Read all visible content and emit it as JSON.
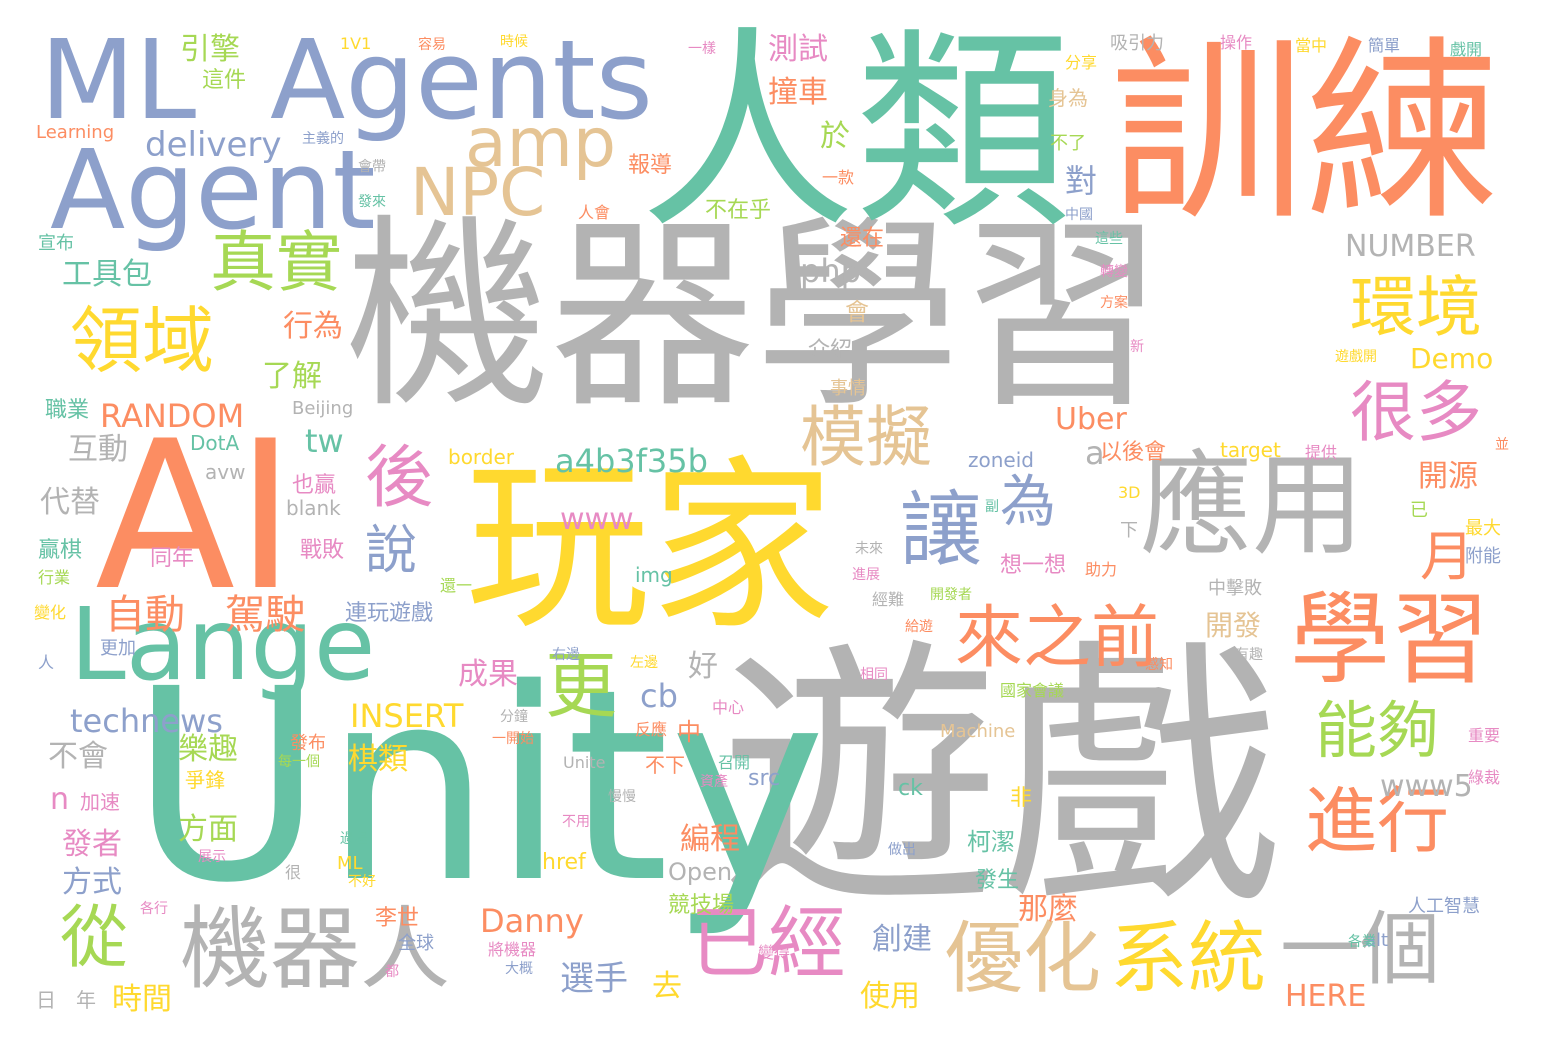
{
  "palette": {
    "gray": "#b3b3b3",
    "green": "#66c2a5",
    "orange": "#fc8d62",
    "blue": "#8da0cb",
    "pink": "#e78ac3",
    "lime": "#a6d854",
    "yellow": "#ffd92f",
    "tan": "#e5c494"
  },
  "words": [
    {
      "text": "機器學習",
      "color": "gray"
    },
    {
      "text": "遊戲",
      "color": "gray"
    },
    {
      "text": "Unity",
      "color": "green"
    },
    {
      "text": "玩家",
      "color": "yellow"
    },
    {
      "text": "人類",
      "color": "green"
    },
    {
      "text": "訓練",
      "color": "orange"
    },
    {
      "text": "AI",
      "color": "orange"
    },
    {
      "text": "ML",
      "color": "blue"
    },
    {
      "text": "Agents",
      "color": "blue"
    },
    {
      "text": "Agent",
      "color": "blue"
    },
    {
      "text": "Lange",
      "color": "green"
    },
    {
      "text": "應用",
      "color": "gray"
    },
    {
      "text": "學習",
      "color": "orange"
    },
    {
      "text": "機器人",
      "color": "gray"
    },
    {
      "text": "優化",
      "color": "tan"
    },
    {
      "text": "系統",
      "color": "yellow"
    },
    {
      "text": "已經",
      "color": "pink"
    },
    {
      "text": "一個",
      "color": "gray"
    },
    {
      "text": "讓",
      "color": "blue"
    },
    {
      "text": "更",
      "color": "lime"
    },
    {
      "text": "進行",
      "color": "orange"
    },
    {
      "text": "來之前",
      "color": "orange"
    },
    {
      "text": "領域",
      "color": "yellow"
    },
    {
      "text": "真實",
      "color": "lime"
    },
    {
      "text": "NPC",
      "color": "tan"
    },
    {
      "text": "amp",
      "color": "tan"
    },
    {
      "text": "模擬",
      "color": "tan"
    },
    {
      "text": "環境",
      "color": "yellow"
    },
    {
      "text": "很多",
      "color": "pink"
    },
    {
      "text": "能夠",
      "color": "lime"
    },
    {
      "text": "後",
      "color": "pink"
    },
    {
      "text": "說",
      "color": "blue"
    },
    {
      "text": "為",
      "color": "blue"
    },
    {
      "text": "月",
      "color": "orange"
    },
    {
      "text": "從",
      "color": "lime"
    },
    {
      "text": "自動",
      "color": "orange"
    },
    {
      "text": "駕駛",
      "color": "orange"
    },
    {
      "text": "delivery",
      "color": "blue"
    },
    {
      "text": "RANDOM",
      "color": "orange"
    },
    {
      "text": "a4b3f35b",
      "color": "green"
    },
    {
      "text": "www",
      "color": "pink"
    },
    {
      "text": "technews",
      "color": "blue"
    },
    {
      "text": "INSERT",
      "color": "yellow"
    },
    {
      "text": "NUMBER",
      "color": "gray"
    },
    {
      "text": "php",
      "color": "gray"
    },
    {
      "text": "Uber",
      "color": "orange"
    },
    {
      "text": "Demo",
      "color": "yellow"
    },
    {
      "text": "tw",
      "color": "green"
    },
    {
      "text": "cb",
      "color": "blue"
    },
    {
      "text": "www5",
      "color": "gray"
    },
    {
      "text": "Danny",
      "color": "orange"
    },
    {
      "text": "HERE",
      "color": "orange"
    },
    {
      "text": "Open",
      "color": "gray"
    },
    {
      "text": "href",
      "color": "yellow"
    },
    {
      "text": "src",
      "color": "blue"
    },
    {
      "text": "ck",
      "color": "green"
    },
    {
      "text": "img",
      "color": "green"
    },
    {
      "text": "border",
      "color": "yellow"
    },
    {
      "text": "target",
      "color": "yellow"
    },
    {
      "text": "zoneid",
      "color": "blue"
    },
    {
      "text": "blank",
      "color": "gray"
    },
    {
      "text": "avw",
      "color": "gray"
    },
    {
      "text": "DotA",
      "color": "green"
    },
    {
      "text": "Beijing",
      "color": "gray"
    },
    {
      "text": "Learning",
      "color": "orange"
    },
    {
      "text": "1V1",
      "color": "yellow"
    },
    {
      "text": "Machine",
      "color": "tan"
    },
    {
      "text": "Unite",
      "color": "gray"
    },
    {
      "text": "ML",
      "color": "yellow"
    },
    {
      "text": "3D",
      "color": "yellow"
    },
    {
      "text": "alt",
      "color": "blue"
    },
    {
      "text": "a",
      "color": "gray"
    },
    {
      "text": "n",
      "color": "pink"
    },
    {
      "text": "引擎",
      "color": "lime"
    },
    {
      "text": "這件",
      "color": "lime"
    },
    {
      "text": "工具包",
      "color": "green"
    },
    {
      "text": "行為",
      "color": "orange"
    },
    {
      "text": "了解",
      "color": "lime"
    },
    {
      "text": "職業",
      "color": "green"
    },
    {
      "text": "互動",
      "color": "gray"
    },
    {
      "text": "代替",
      "color": "gray"
    },
    {
      "text": "贏棋",
      "color": "green"
    },
    {
      "text": "行業",
      "color": "lime"
    },
    {
      "text": "變化",
      "color": "yellow"
    },
    {
      "text": "宣布",
      "color": "green"
    },
    {
      "text": "測試",
      "color": "pink"
    },
    {
      "text": "撞車",
      "color": "orange"
    },
    {
      "text": "於",
      "color": "lime"
    },
    {
      "text": "報導",
      "color": "orange"
    },
    {
      "text": "不在乎",
      "color": "lime"
    },
    {
      "text": "介紹",
      "color": "gray"
    },
    {
      "text": "事情",
      "color": "tan"
    },
    {
      "text": "成果",
      "color": "pink"
    },
    {
      "text": "好",
      "color": "gray"
    },
    {
      "text": "樂趣",
      "color": "lime"
    },
    {
      "text": "棋類",
      "color": "yellow"
    },
    {
      "text": "不會",
      "color": "gray"
    },
    {
      "text": "方面",
      "color": "lime"
    },
    {
      "text": "發者",
      "color": "pink"
    },
    {
      "text": "方式",
      "color": "blue"
    },
    {
      "text": "時間",
      "color": "yellow"
    },
    {
      "text": "選手",
      "color": "blue"
    },
    {
      "text": "去",
      "color": "yellow"
    },
    {
      "text": "使用",
      "color": "yellow"
    },
    {
      "text": "創建",
      "color": "blue"
    },
    {
      "text": "編程",
      "color": "orange"
    },
    {
      "text": "競技場",
      "color": "lime"
    },
    {
      "text": "那麼",
      "color": "orange"
    },
    {
      "text": "柯潔",
      "color": "green"
    },
    {
      "text": "發生",
      "color": "green"
    },
    {
      "text": "開發",
      "color": "tan"
    },
    {
      "text": "開源",
      "color": "orange"
    },
    {
      "text": "連玩遊戲",
      "color": "blue"
    },
    {
      "text": "對",
      "color": "blue"
    },
    {
      "text": "還在",
      "color": "orange"
    },
    {
      "text": "會",
      "color": "tan"
    },
    {
      "text": "以後會",
      "color": "orange"
    },
    {
      "text": "想一想",
      "color": "pink"
    },
    {
      "text": "中擊敗",
      "color": "gray"
    },
    {
      "text": "提供",
      "color": "pink"
    },
    {
      "text": "人工智慧",
      "color": "blue"
    },
    {
      "text": "最大",
      "color": "yellow"
    },
    {
      "text": "附能",
      "color": "blue"
    },
    {
      "text": "李世",
      "color": "orange"
    },
    {
      "text": "全球",
      "color": "blue"
    },
    {
      "text": "同年",
      "color": "pink"
    },
    {
      "text": "戰敗",
      "color": "pink"
    },
    {
      "text": "也贏",
      "color": "pink"
    },
    {
      "text": "日",
      "color": "gray"
    },
    {
      "text": "年",
      "color": "gray"
    },
    {
      "text": "人",
      "color": "blue"
    },
    {
      "text": "更加",
      "color": "blue"
    },
    {
      "text": "加速",
      "color": "pink"
    },
    {
      "text": "爭鋒",
      "color": "yellow"
    },
    {
      "text": "發布",
      "color": "orange"
    },
    {
      "text": "中",
      "color": "orange"
    },
    {
      "text": "不下",
      "color": "orange"
    },
    {
      "text": "不了",
      "color": "lime"
    },
    {
      "text": "身為",
      "color": "tan"
    },
    {
      "text": "分享",
      "color": "yellow"
    },
    {
      "text": "吸引力",
      "color": "gray"
    },
    {
      "text": "操作",
      "color": "pink"
    },
    {
      "text": "當中",
      "color": "yellow"
    },
    {
      "text": "簡單",
      "color": "blue"
    },
    {
      "text": "戲開",
      "color": "green"
    },
    {
      "text": "容易",
      "color": "orange"
    },
    {
      "text": "時候",
      "color": "yellow"
    },
    {
      "text": "一樣",
      "color": "pink"
    },
    {
      "text": "主義的",
      "color": "blue"
    },
    {
      "text": "會帶",
      "color": "gray"
    },
    {
      "text": "發來",
      "color": "green"
    },
    {
      "text": "人會",
      "color": "orange"
    },
    {
      "text": "一款",
      "color": "orange"
    },
    {
      "text": "中國",
      "color": "blue"
    },
    {
      "text": "這些",
      "color": "green"
    },
    {
      "text": "轉變",
      "color": "pink"
    },
    {
      "text": "方案",
      "color": "orange"
    },
    {
      "text": "新",
      "color": "pink"
    },
    {
      "text": "遊戲開",
      "color": "yellow"
    },
    {
      "text": "並",
      "color": "orange"
    },
    {
      "text": "已",
      "color": "lime"
    },
    {
      "text": "下",
      "color": "gray"
    },
    {
      "text": "副",
      "color": "green"
    },
    {
      "text": "助力",
      "color": "orange"
    },
    {
      "text": "未來",
      "color": "gray"
    },
    {
      "text": "進展",
      "color": "pink"
    },
    {
      "text": "經難",
      "color": "gray"
    },
    {
      "text": "開發者",
      "color": "lime"
    },
    {
      "text": "給遊",
      "color": "orange"
    },
    {
      "text": "右邊",
      "color": "blue"
    },
    {
      "text": "左邊",
      "color": "yellow"
    },
    {
      "text": "相同",
      "color": "pink"
    },
    {
      "text": "國家會議",
      "color": "lime"
    },
    {
      "text": "感知",
      "color": "orange"
    },
    {
      "text": "有趣",
      "color": "gray"
    },
    {
      "text": "反應",
      "color": "orange"
    },
    {
      "text": "中心",
      "color": "pink"
    },
    {
      "text": "重要",
      "color": "pink"
    },
    {
      "text": "綠裁",
      "color": "pink"
    },
    {
      "text": "召開",
      "color": "green"
    },
    {
      "text": "資產",
      "color": "pink"
    },
    {
      "text": "慢慢",
      "color": "gray"
    },
    {
      "text": "一開始",
      "color": "orange"
    },
    {
      "text": "分鐘",
      "color": "gray"
    },
    {
      "text": "每一個",
      "color": "lime"
    },
    {
      "text": "過程",
      "color": "green"
    },
    {
      "text": "不好",
      "color": "yellow"
    },
    {
      "text": "很",
      "color": "gray"
    },
    {
      "text": "展示",
      "color": "pink"
    },
    {
      "text": "不用",
      "color": "pink"
    },
    {
      "text": "非",
      "color": "yellow"
    },
    {
      "text": "做出",
      "color": "blue"
    },
    {
      "text": "將機器",
      "color": "pink"
    },
    {
      "text": "大概",
      "color": "blue"
    },
    {
      "text": "都",
      "color": "pink"
    },
    {
      "text": "變得",
      "color": "pink"
    },
    {
      "text": "各業",
      "color": "green"
    },
    {
      "text": "各行",
      "color": "pink"
    },
    {
      "text": "還一",
      "color": "lime"
    }
  ]
}
